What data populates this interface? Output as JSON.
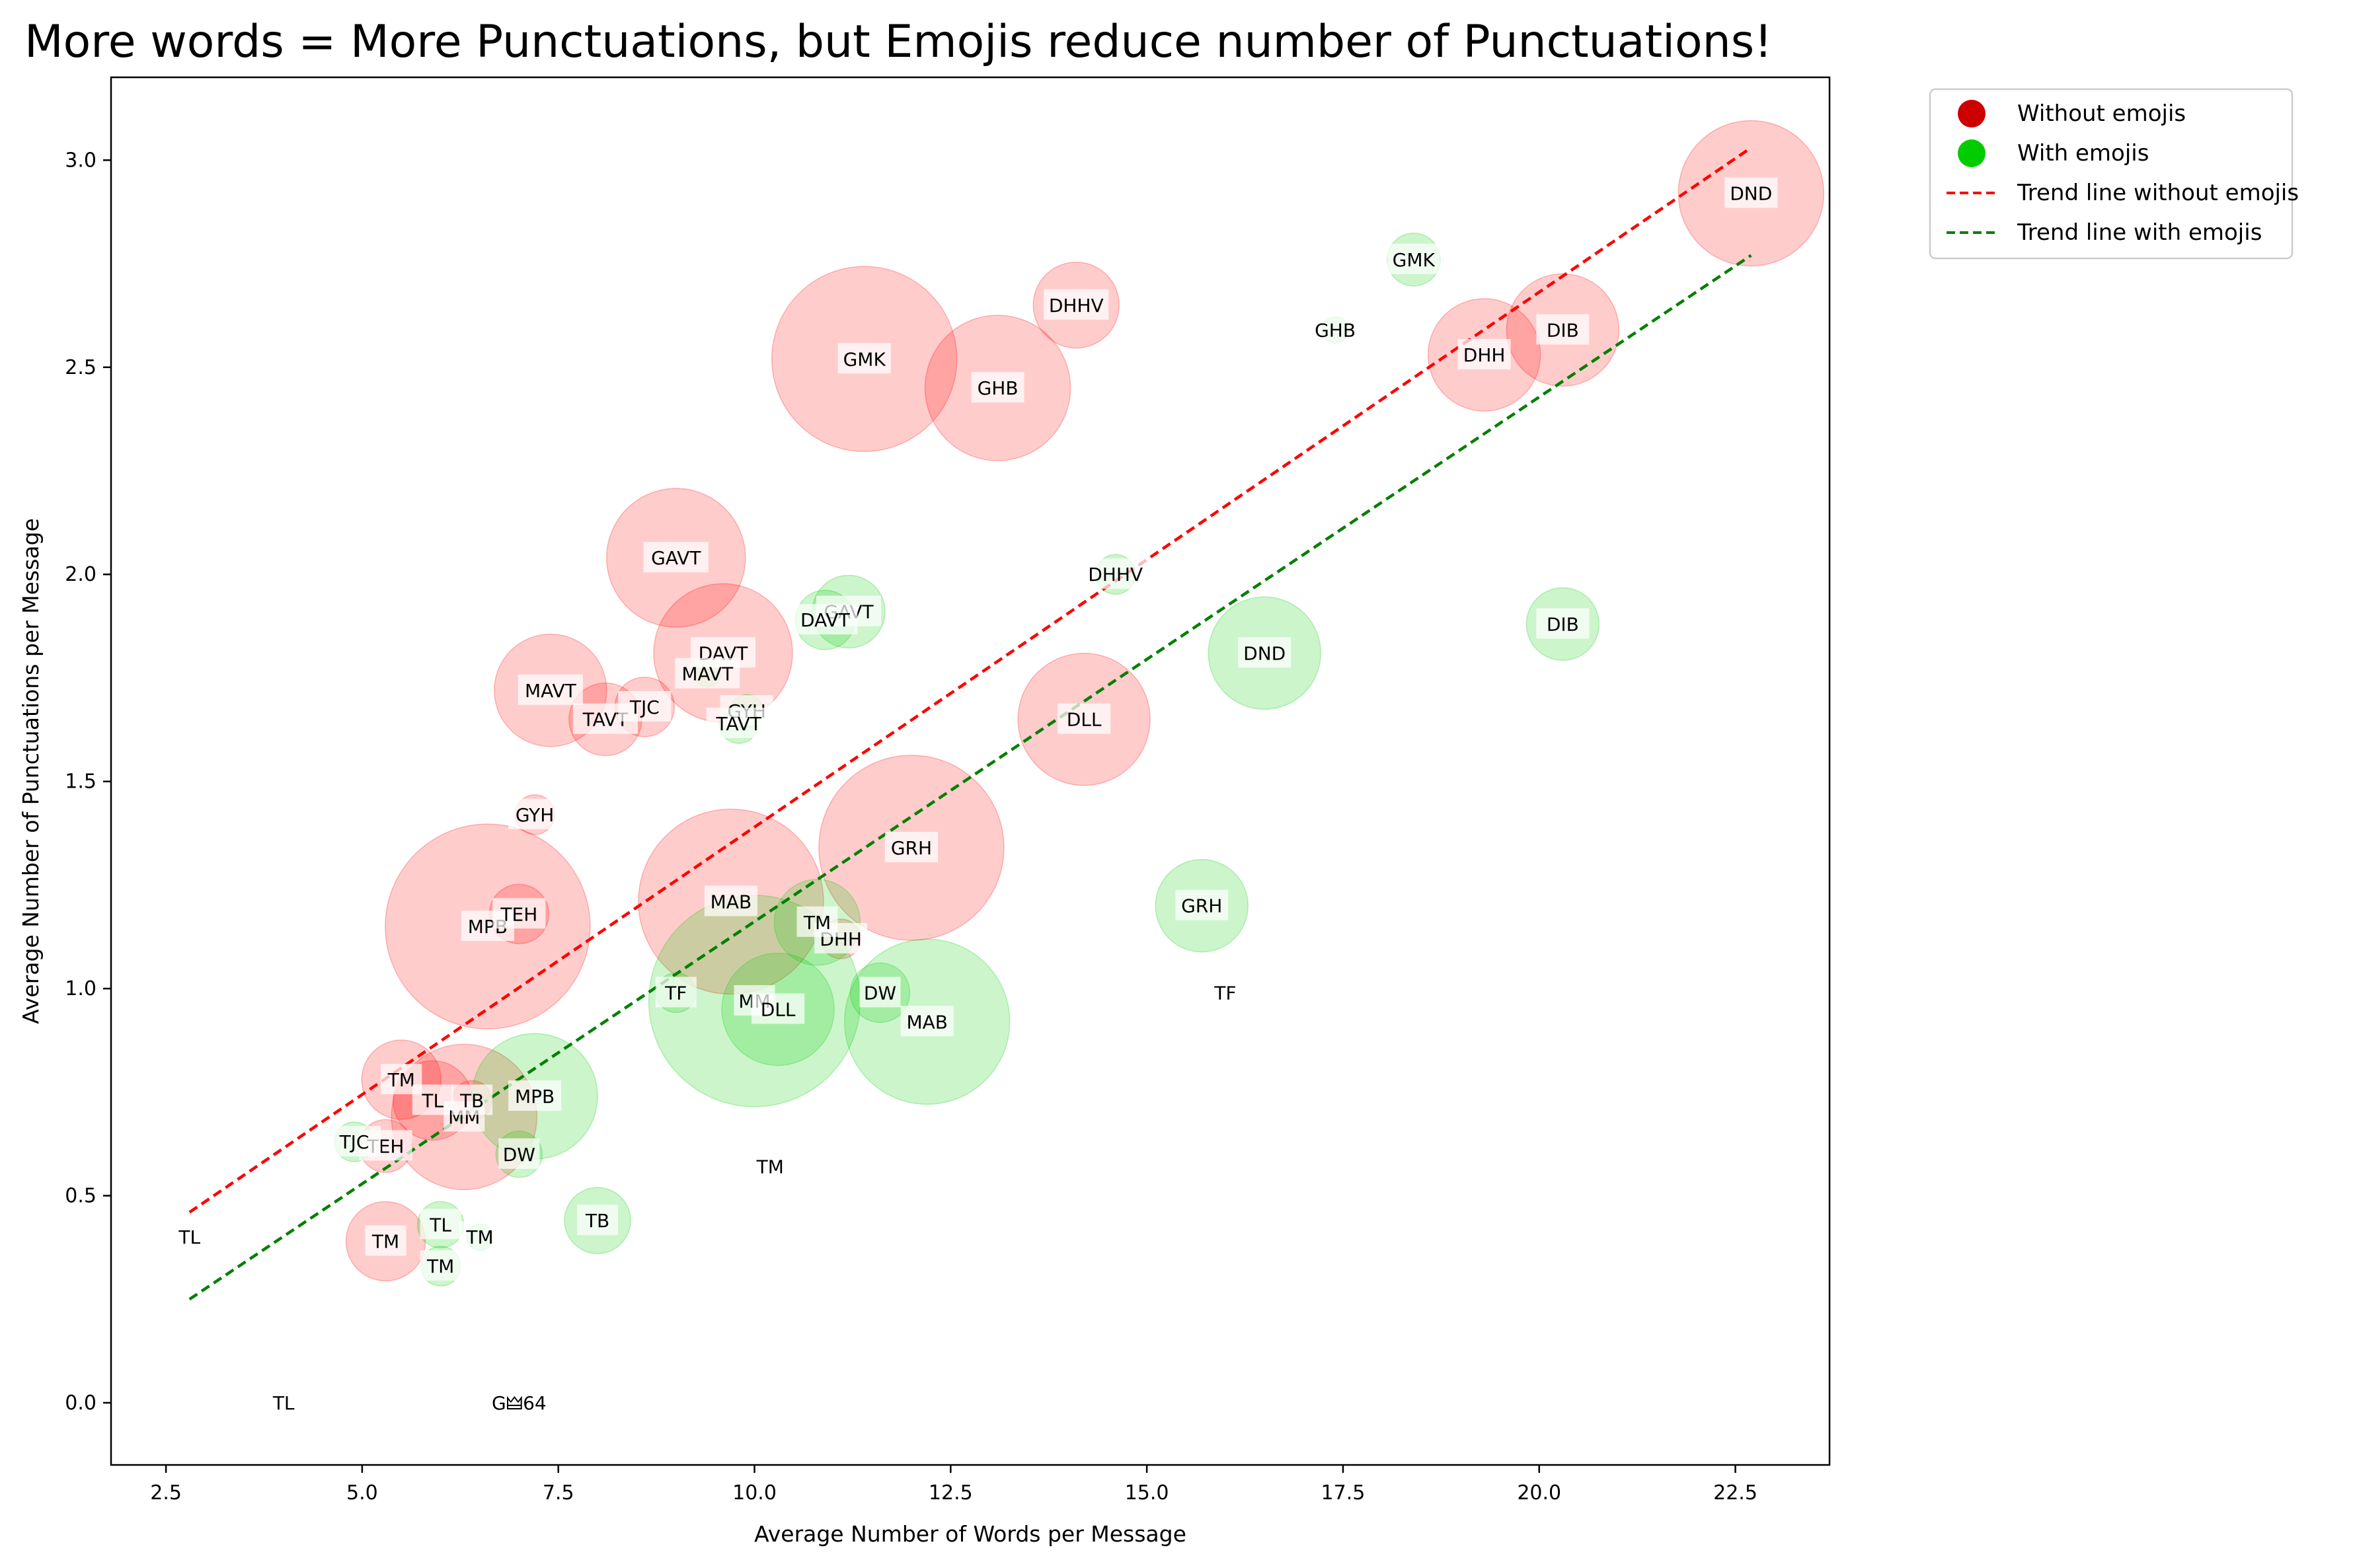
{
  "chart_data": {
    "type": "scatter",
    "title": "More words = More Punctuations, but Emojis reduce number of Punctuations!",
    "xlabel": "Average Number of Words per Message",
    "ylabel": "Average Number of Punctuations per Message",
    "xlim": [
      1.8,
      23.7
    ],
    "ylim": [
      -0.15,
      3.2
    ],
    "xticks": [
      "2.5",
      "5.0",
      "7.5",
      "10.0",
      "12.5",
      "15.0",
      "17.5",
      "20.0",
      "22.5"
    ],
    "yticks": [
      "0.0",
      "0.5",
      "1.0",
      "1.5",
      "2.0",
      "2.5",
      "3.0"
    ],
    "grid": false,
    "legend_position": "outside-top-right",
    "legend": [
      "Without emojis",
      "With emojis",
      "Trend line without emojis",
      "Trend line with emojis"
    ],
    "colors": {
      "without": "#ff0000",
      "with": "#00cc00",
      "legend_without": "#cc0000",
      "legend_with": "#00cc00",
      "trend_without": "#ff0000",
      "trend_with": "#008000"
    },
    "trend_without": {
      "x": [
        2.8,
        22.7
      ],
      "y": [
        0.46,
        3.03
      ]
    },
    "trend_with": {
      "x": [
        2.8,
        22.7
      ],
      "y": [
        0.25,
        2.77
      ]
    },
    "without_emojis": [
      {
        "label": "DND",
        "x": 22.7,
        "y": 2.92,
        "size": 110
      },
      {
        "label": "DIB",
        "x": 20.3,
        "y": 2.59,
        "size": 85
      },
      {
        "label": "DHH",
        "x": 19.3,
        "y": 2.53,
        "size": 85
      },
      {
        "label": "DHHV",
        "x": 14.1,
        "y": 2.65,
        "size": 65
      },
      {
        "label": "GMK",
        "x": 11.4,
        "y": 2.52,
        "size": 140
      },
      {
        "label": "GHB",
        "x": 13.1,
        "y": 2.45,
        "size": 110
      },
      {
        "label": "GAVT",
        "x": 9.0,
        "y": 2.04,
        "size": 105
      },
      {
        "label": "DAVT",
        "x": 9.6,
        "y": 1.81,
        "size": 105
      },
      {
        "label": "MAVT",
        "x": 7.4,
        "y": 1.72,
        "size": 85
      },
      {
        "label": "TAVT",
        "x": 8.1,
        "y": 1.65,
        "size": 55
      },
      {
        "label": "TJC",
        "x": 8.6,
        "y": 1.68,
        "size": 45
      },
      {
        "label": "DLL",
        "x": 14.2,
        "y": 1.65,
        "size": 100
      },
      {
        "label": "GYH",
        "x": 7.2,
        "y": 1.42,
        "size": 30
      },
      {
        "label": "GRH",
        "x": 12.0,
        "y": 1.34,
        "size": 140
      },
      {
        "label": "MAB",
        "x": 9.7,
        "y": 1.21,
        "size": 140
      },
      {
        "label": "MPB",
        "x": 6.6,
        "y": 1.15,
        "size": 155
      },
      {
        "label": "TEH",
        "x": 7.0,
        "y": 1.18,
        "size": 45
      },
      {
        "label": "DHH",
        "x": 11.1,
        "y": 1.12,
        "size": 30
      },
      {
        "label": "TM",
        "x": 5.5,
        "y": 0.78,
        "size": 60
      },
      {
        "label": "TL",
        "x": 5.9,
        "y": 0.73,
        "size": 60
      },
      {
        "label": "MM",
        "x": 6.3,
        "y": 0.69,
        "size": 110
      },
      {
        "label": "TB",
        "x": 6.4,
        "y": 0.73,
        "size": 30
      },
      {
        "label": "TEH",
        "x": 5.3,
        "y": 0.62,
        "size": 40
      },
      {
        "label": "TM",
        "x": 5.3,
        "y": 0.39,
        "size": 60
      },
      {
        "label": "TF",
        "x": 16.0,
        "y": 0.99,
        "size": 0
      },
      {
        "label": "TL",
        "x": 2.8,
        "y": 0.4,
        "size": 0
      },
      {
        "label": "TL",
        "x": 4.0,
        "y": 0.0,
        "size": 0
      },
      {
        "label": "G🜲64",
        "x": 7.0,
        "y": 0.0,
        "size": 0
      }
    ],
    "with_emojis": [
      {
        "label": "GMK",
        "x": 18.4,
        "y": 2.76,
        "size": 40
      },
      {
        "label": "GHB",
        "x": 17.4,
        "y": 2.59,
        "size": 20
      },
      {
        "label": "DHHV",
        "x": 14.6,
        "y": 2.0,
        "size": 30
      },
      {
        "label": "GAVT",
        "x": 11.2,
        "y": 1.91,
        "size": 55
      },
      {
        "label": "DAVT",
        "x": 10.9,
        "y": 1.89,
        "size": 45
      },
      {
        "label": "DND",
        "x": 16.5,
        "y": 1.81,
        "size": 85
      },
      {
        "label": "DIB",
        "x": 20.3,
        "y": 1.88,
        "size": 55
      },
      {
        "label": "MAVT",
        "x": 9.4,
        "y": 1.76,
        "size": 20
      },
      {
        "label": "GYH",
        "x": 9.9,
        "y": 1.67,
        "size": 25
      },
      {
        "label": "TAVT",
        "x": 9.8,
        "y": 1.64,
        "size": 30
      },
      {
        "label": "GRH",
        "x": 15.7,
        "y": 1.2,
        "size": 70
      },
      {
        "label": "TM",
        "x": 10.8,
        "y": 1.16,
        "size": 65
      },
      {
        "label": "TF",
        "x": 9.0,
        "y": 0.99,
        "size": 30
      },
      {
        "label": "MM",
        "x": 10.0,
        "y": 0.97,
        "size": 160
      },
      {
        "label": "DLL",
        "x": 10.3,
        "y": 0.95,
        "size": 85
      },
      {
        "label": "DW",
        "x": 11.6,
        "y": 0.99,
        "size": 45
      },
      {
        "label": "MAB",
        "x": 12.2,
        "y": 0.92,
        "size": 125
      },
      {
        "label": "MPB",
        "x": 7.2,
        "y": 0.74,
        "size": 95
      },
      {
        "label": "DW",
        "x": 7.0,
        "y": 0.6,
        "size": 35
      },
      {
        "label": "TJC",
        "x": 4.9,
        "y": 0.63,
        "size": 30
      },
      {
        "label": "TB",
        "x": 8.0,
        "y": 0.44,
        "size": 50
      },
      {
        "label": "TL",
        "x": 6.0,
        "y": 0.43,
        "size": 35
      },
      {
        "label": "TM",
        "x": 6.5,
        "y": 0.4,
        "size": 20
      },
      {
        "label": "TM",
        "x": 6.0,
        "y": 0.33,
        "size": 30
      },
      {
        "label": "TM",
        "x": 10.2,
        "y": 0.57,
        "size": 0
      }
    ]
  }
}
